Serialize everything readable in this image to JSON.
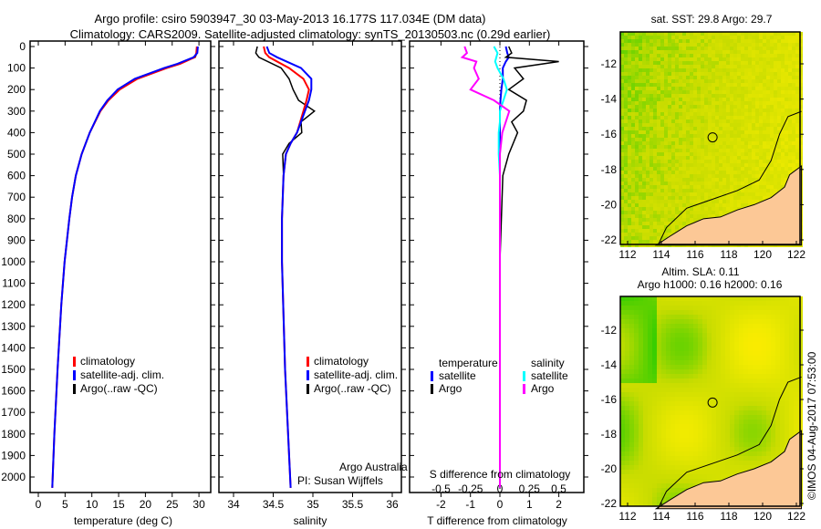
{
  "title_line1": "Argo profile: csiro 5903947_30 03-May-2013 16.177S 117.034E (DM data)",
  "title_line2": "Climatology: CARS2009. Satellite-adjusted climatology: synTS_20130503.nc (0.29d earlier)",
  "colors": {
    "climatology": "#ff0000",
    "satellite": "#0000ff",
    "argo": "#000000",
    "sal_sat": "#00ffff",
    "sal_argo": "#ff00ff",
    "land": "#fcc896"
  },
  "chart_data": [
    {
      "type": "line",
      "xlabel": "temperature (deg C)",
      "xticks": [
        0,
        5,
        10,
        15,
        20,
        25,
        30
      ],
      "xlim": [
        -0.3,
        31.5
      ],
      "ylim": [
        0,
        2100
      ],
      "yticks": [
        0,
        100,
        200,
        300,
        400,
        500,
        600,
        700,
        800,
        900,
        1000,
        1100,
        1200,
        1300,
        1400,
        1500,
        1600,
        1700,
        1800,
        1900,
        2000
      ],
      "legend": [
        "climatology",
        "satellite-adj. clim.",
        "Argo(..raw -QC)"
      ],
      "depth": [
        0,
        30,
        50,
        80,
        100,
        150,
        200,
        250,
        300,
        400,
        500,
        600,
        700,
        800,
        1000,
        1200,
        1500,
        1800,
        2050
      ],
      "series": [
        {
          "name": "climatology",
          "values": [
            29.6,
            29.5,
            29.2,
            26.5,
            24.0,
            18.5,
            15.2,
            13.1,
            11.6,
            9.6,
            8.1,
            7.0,
            6.3,
            5.8,
            4.9,
            4.3,
            3.6,
            3.0,
            2.6
          ]
        },
        {
          "name": "satellite-adj. clim.",
          "values": [
            29.8,
            29.7,
            29.0,
            26.0,
            23.5,
            18.0,
            14.8,
            12.9,
            11.5,
            9.6,
            8.1,
            7.0,
            6.3,
            5.8,
            4.9,
            4.3,
            3.6,
            3.0,
            2.6
          ]
        },
        {
          "name": "Argo(..raw -QC)",
          "values": [
            29.7,
            29.6,
            29.3,
            26.2,
            23.7,
            18.2,
            15.0,
            13.0,
            11.6,
            9.6,
            8.1,
            7.0,
            6.3,
            5.8,
            4.9,
            4.3,
            3.6,
            3.0,
            2.6
          ]
        }
      ]
    },
    {
      "type": "line",
      "xlabel": "salinity",
      "xticks": [
        34,
        34.5,
        35,
        35.5,
        36
      ],
      "xlim": [
        33.8,
        36.1
      ],
      "legend": [
        "climatology",
        "satellite-adj. clim.",
        "Argo(..raw -QC)"
      ],
      "annotation": [
        "Argo Australia",
        "PI: Susan Wijffels"
      ],
      "depth": [
        0,
        30,
        50,
        100,
        150,
        200,
        250,
        300,
        350,
        400,
        450,
        500,
        600,
        800,
        1000,
        1500,
        2050
      ],
      "series": [
        {
          "name": "climatology",
          "values": [
            34.38,
            34.4,
            34.45,
            34.7,
            34.88,
            34.95,
            34.92,
            34.88,
            34.84,
            34.8,
            34.72,
            34.66,
            34.63,
            34.61,
            34.61,
            34.65,
            34.72
          ]
        },
        {
          "name": "satellite-adj. clim.",
          "values": [
            34.42,
            34.45,
            34.55,
            34.85,
            34.98,
            34.98,
            34.95,
            34.9,
            34.85,
            34.8,
            34.72,
            34.66,
            34.63,
            34.61,
            34.61,
            34.65,
            34.72
          ]
        },
        {
          "name": "Argo(..raw -QC)",
          "values": [
            34.3,
            34.28,
            34.32,
            34.6,
            34.7,
            34.75,
            34.82,
            35.02,
            34.85,
            34.86,
            34.7,
            34.62,
            34.63,
            34.61,
            34.61,
            34.65,
            34.72
          ]
        }
      ]
    },
    {
      "type": "line",
      "xlabel": "T difference from climatology",
      "xlabel2": "S difference from climatology",
      "xticks": [
        -2,
        -1,
        0,
        1,
        2
      ],
      "xticks2": [
        -0.5,
        -0.25,
        0,
        0.25,
        0.5
      ],
      "xlim": [
        -2.6,
        2.8
      ],
      "legend_temperature": {
        "title": "temperature",
        "items": [
          "satellite",
          "Argo"
        ]
      },
      "legend_salinity": {
        "title": "salinity",
        "items": [
          "satellite",
          "Argo"
        ]
      },
      "depth": [
        0,
        30,
        50,
        70,
        100,
        150,
        200,
        250,
        300,
        350,
        400,
        500,
        600,
        800,
        1000,
        1500,
        2050
      ],
      "series": [
        {
          "name": "temperature satellite",
          "values": [
            0.2,
            0.25,
            0.3,
            0.2,
            0.1,
            0.1,
            0.05,
            0.02,
            0.0,
            0.0,
            0.0,
            0.0,
            0.0,
            0.0,
            0.0,
            0.0,
            0.0
          ]
        },
        {
          "name": "temperature Argo",
          "values": [
            0.3,
            0.4,
            0.2,
            2.0,
            0.5,
            0.8,
            0.3,
            0.9,
            0.8,
            0.4,
            0.6,
            0.3,
            0.1,
            0.05,
            0.0,
            0.0,
            0.0
          ]
        },
        {
          "name": "salinity satellite",
          "values": [
            -0.05,
            -0.02,
            -0.03,
            -0.04,
            -0.02,
            0.03,
            0.06,
            0.03,
            0.0,
            0.0,
            -0.01,
            -0.01,
            0.0,
            0.0,
            0.0,
            0.0,
            0.0
          ]
        },
        {
          "name": "salinity Argo",
          "values": [
            -0.3,
            -0.28,
            -0.32,
            -0.2,
            -0.22,
            -0.18,
            -0.25,
            -0.05,
            0.08,
            0.05,
            0.02,
            0.0,
            0.0,
            0.0,
            0.0,
            0.0,
            0.0
          ]
        }
      ]
    }
  ],
  "maps": [
    {
      "title": "sat. SST: 29.8 Argo: 29.7",
      "xticks": [
        112,
        114,
        116,
        118,
        120,
        122
      ],
      "yticks": [
        -12,
        -14,
        -16,
        -18,
        -20,
        -22
      ],
      "argo_lon": 117.034,
      "argo_lat": -16.177
    },
    {
      "title_line1": "Altim. SLA: 0.11",
      "title_line2": "Argo h1000: 0.16 h2000: 0.16",
      "xticks": [
        112,
        114,
        116,
        118,
        120,
        122
      ],
      "yticks": [
        -12,
        -14,
        -16,
        -18,
        -20,
        -22
      ],
      "argo_lon": 117.034,
      "argo_lat": -16.177
    }
  ],
  "credit": "©IMOS 04-Aug-2017 07:53:00"
}
